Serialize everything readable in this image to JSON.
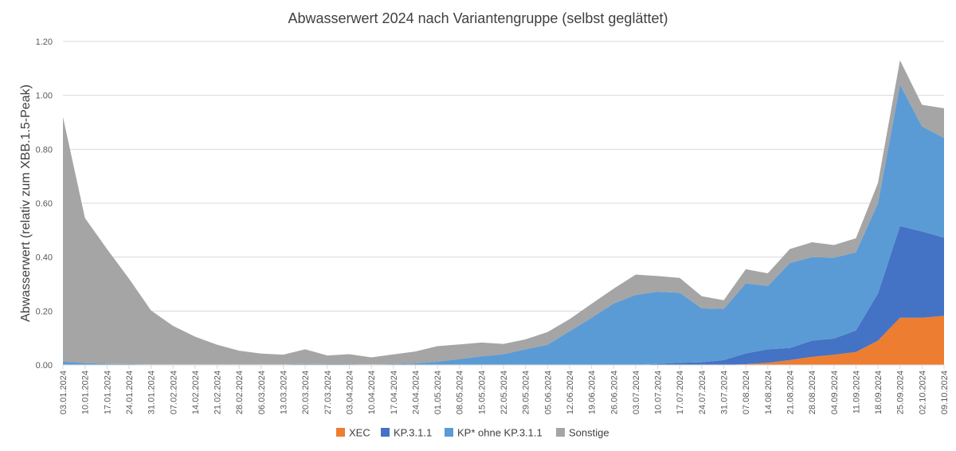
{
  "chart_data": {
    "type": "area",
    "stacked": true,
    "title": "Abwasserwert 2024 nach Variantengruppe (selbst geglättet)",
    "xlabel": "",
    "ylabel": "Abwasserwert (relativ zum XBB.1.5-Peak)",
    "ylim": [
      0,
      1.2
    ],
    "yticks": [
      "0.00",
      "0.20",
      "0.40",
      "0.60",
      "0.80",
      "1.00",
      "1.20"
    ],
    "grid": true,
    "legend_position": "bottom",
    "x": [
      "03.01.2024",
      "10.01.2024",
      "17.01.2024",
      "24.01.2024",
      "31.01.2024",
      "07.02.2024",
      "14.02.2024",
      "21.02.2024",
      "28.02.2024",
      "06.03.2024",
      "13.03.2024",
      "20.03.2024",
      "27.03.2024",
      "03.04.2024",
      "10.04.2024",
      "17.04.2024",
      "24.04.2024",
      "01.05.2024",
      "08.05.2024",
      "15.05.2024",
      "22.05.2024",
      "29.05.2024",
      "05.06.2024",
      "12.06.2024",
      "19.06.2024",
      "26.06.2024",
      "03.07.2024",
      "10.07.2024",
      "17.07.2024",
      "24.07.2024",
      "31.07.2024",
      "07.08.2024",
      "14.08.2024",
      "21.08.2024",
      "28.08.2024",
      "04.09.2024",
      "11.09.2024",
      "18.09.2024",
      "25.09.2024",
      "02.10.2024",
      "09.10.2024"
    ],
    "series": [
      {
        "name": "XEC",
        "color": "#ED7D31",
        "values": [
          0,
          0,
          0,
          0,
          0,
          0,
          0,
          0,
          0,
          0,
          0,
          0,
          0,
          0,
          0,
          0,
          0,
          0,
          0,
          0,
          0,
          0,
          0,
          0,
          0,
          0,
          0,
          0,
          0,
          0,
          0,
          0.003,
          0.008,
          0.018,
          0.03,
          0.038,
          0.048,
          0.09,
          0.175,
          0.175,
          0.182
        ]
      },
      {
        "name": "KP.3.1.1",
        "color": "#4472C4",
        "values": [
          0,
          0,
          0,
          0,
          0,
          0,
          0,
          0,
          0,
          0,
          0,
          0,
          0,
          0,
          0,
          0,
          0,
          0,
          0,
          0,
          0,
          0,
          0,
          0,
          0,
          0,
          0,
          0.004,
          0.008,
          0.01,
          0.018,
          0.04,
          0.05,
          0.045,
          0.06,
          0.06,
          0.08,
          0.175,
          0.34,
          0.32,
          0.29
        ]
      },
      {
        "name": "KP* ohne KP.3.1.1",
        "color": "#5B9BD5",
        "values": [
          0.013,
          0.007,
          0.004,
          0.003,
          0.002,
          0.002,
          0.002,
          0.002,
          0.002,
          0.002,
          0.002,
          0.004,
          0.003,
          0.003,
          0.002,
          0.003,
          0.006,
          0.012,
          0.022,
          0.032,
          0.04,
          0.058,
          0.075,
          0.125,
          0.175,
          0.228,
          0.26,
          0.268,
          0.26,
          0.2,
          0.19,
          0.26,
          0.235,
          0.315,
          0.31,
          0.3,
          0.29,
          0.335,
          0.525,
          0.39,
          0.37
        ]
      },
      {
        "name": "Sonstige",
        "color": "#A5A5A5",
        "values": [
          0.907,
          0.538,
          0.426,
          0.317,
          0.2,
          0.143,
          0.103,
          0.073,
          0.051,
          0.04,
          0.036,
          0.054,
          0.032,
          0.037,
          0.026,
          0.036,
          0.044,
          0.058,
          0.054,
          0.051,
          0.038,
          0.037,
          0.047,
          0.045,
          0.052,
          0.055,
          0.075,
          0.058,
          0.055,
          0.045,
          0.032,
          0.052,
          0.047,
          0.052,
          0.055,
          0.047,
          0.052,
          0.075,
          0.09,
          0.08,
          0.11
        ]
      }
    ]
  }
}
